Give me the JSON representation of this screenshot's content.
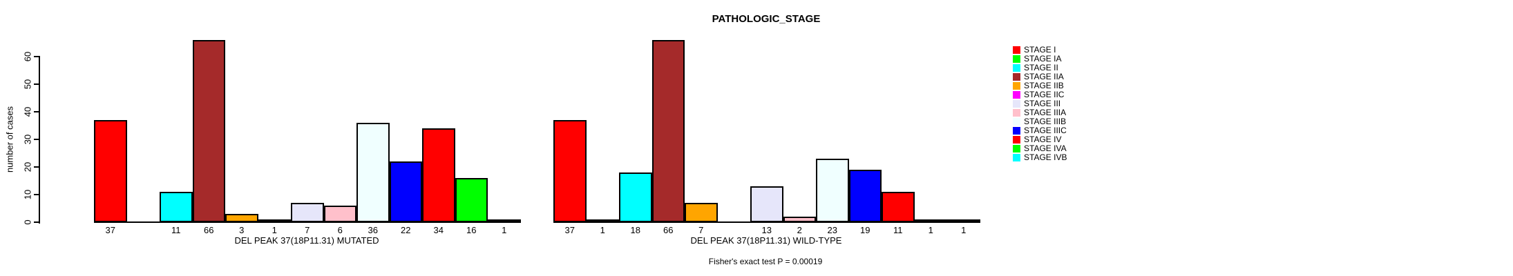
{
  "title": "PATHOLOGIC_STAGE",
  "footer": "Fisher's exact test P = 0.00019",
  "chart_data": {
    "type": "bar",
    "title": "PATHOLOGIC_STAGE",
    "ylabel": "number of cases",
    "ylim": [
      0,
      60
    ],
    "yticks": [
      0,
      10,
      20,
      30,
      40,
      50,
      60
    ],
    "grid": false,
    "bar_value_labels": "values printed under each bar; zero-value bars drawn flat with no label",
    "categories": [
      "STAGE I",
      "STAGE IA",
      "STAGE II",
      "STAGE IIA",
      "STAGE IIB",
      "STAGE IIC",
      "STAGE III",
      "STAGE IIIA",
      "STAGE IIIB",
      "STAGE IIIC",
      "STAGE IV",
      "STAGE IVA",
      "STAGE IVB"
    ],
    "palette": [
      "#FF0000",
      "#00FF00",
      "#00FFFF",
      "#A52A2A",
      "#FFA500",
      "#FF00FF",
      "#E6E6FA",
      "#FFC0CB",
      "#F0FFFF",
      "#0000FF",
      "#FF0000",
      "#00FF00",
      "#00FFFF"
    ],
    "series": [
      {
        "name": "DEL PEAK 37(18P11.31) MUTATED",
        "values": [
          37,
          0,
          11,
          66,
          3,
          1,
          7,
          6,
          36,
          22,
          34,
          16,
          1
        ]
      },
      {
        "name": "DEL PEAK 37(18P11.31) WILD-TYPE",
        "values": [
          37,
          1,
          18,
          66,
          7,
          0,
          13,
          2,
          23,
          19,
          11,
          1,
          1
        ]
      }
    ],
    "legend": {
      "position": "right",
      "entries": [
        {
          "label": "STAGE I",
          "color": "#FF0000"
        },
        {
          "label": "STAGE IA",
          "color": "#00FF00"
        },
        {
          "label": "STAGE II",
          "color": "#00FFFF"
        },
        {
          "label": "STAGE IIA",
          "color": "#A52A2A"
        },
        {
          "label": "STAGE IIB",
          "color": "#FFA500"
        },
        {
          "label": "STAGE IIC",
          "color": "#FF00FF"
        },
        {
          "label": "STAGE III",
          "color": "#E6E6FA"
        },
        {
          "label": "STAGE IIIA",
          "color": "#FFC0CB"
        },
        {
          "label": "STAGE IIIB",
          "color": "#F0FFFF"
        },
        {
          "label": "STAGE IIIC",
          "color": "#0000FF"
        },
        {
          "label": "STAGE IV",
          "color": "#FF0000"
        },
        {
          "label": "STAGE IVA",
          "color": "#00FF00"
        },
        {
          "label": "STAGE IVB",
          "color": "#00FFFF"
        }
      ]
    }
  }
}
